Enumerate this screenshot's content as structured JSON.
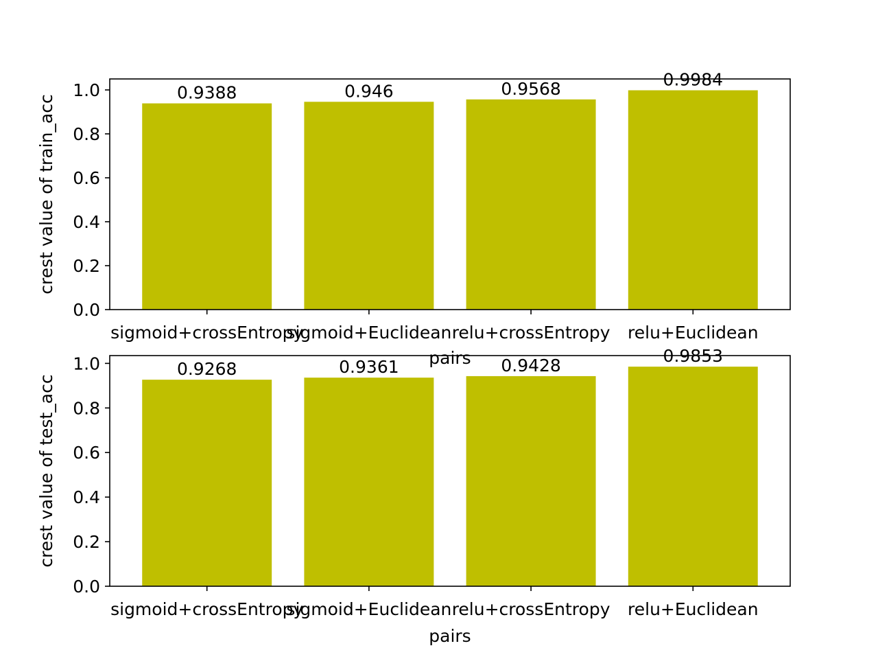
{
  "chart_data": [
    {
      "type": "bar",
      "categories": [
        "sigmoid+crossEntropy",
        "sigmoid+Euclidean",
        "relu+crossEntropy",
        "relu+Euclidean"
      ],
      "values": [
        0.9388,
        0.946,
        0.9568,
        0.9984
      ],
      "value_labels": [
        "0.9388",
        "0.946",
        "0.9568",
        "0.9984"
      ],
      "title": "",
      "xlabel": "pairs",
      "ylabel": "crest value of train_acc",
      "ylim": [
        0,
        1.05
      ],
      "yticks": [
        "0.0",
        "0.2",
        "0.4",
        "0.6",
        "0.8",
        "1.0"
      ],
      "bar_color": "#bfbf00",
      "grid": false
    },
    {
      "type": "bar",
      "categories": [
        "sigmoid+crossEntropy",
        "sigmoid+Euclidean",
        "relu+crossEntropy",
        "relu+Euclidean"
      ],
      "values": [
        0.9268,
        0.9361,
        0.9428,
        0.9853
      ],
      "value_labels": [
        "0.9268",
        "0.9361",
        "0.9428",
        "0.9853"
      ],
      "title": "",
      "xlabel": "pairs",
      "ylabel": "crest value of test_acc",
      "ylim": [
        0,
        1.035
      ],
      "yticks": [
        "0.0",
        "0.2",
        "0.4",
        "0.6",
        "0.8",
        "1.0"
      ],
      "bar_color": "#bfbf00",
      "grid": false
    }
  ]
}
